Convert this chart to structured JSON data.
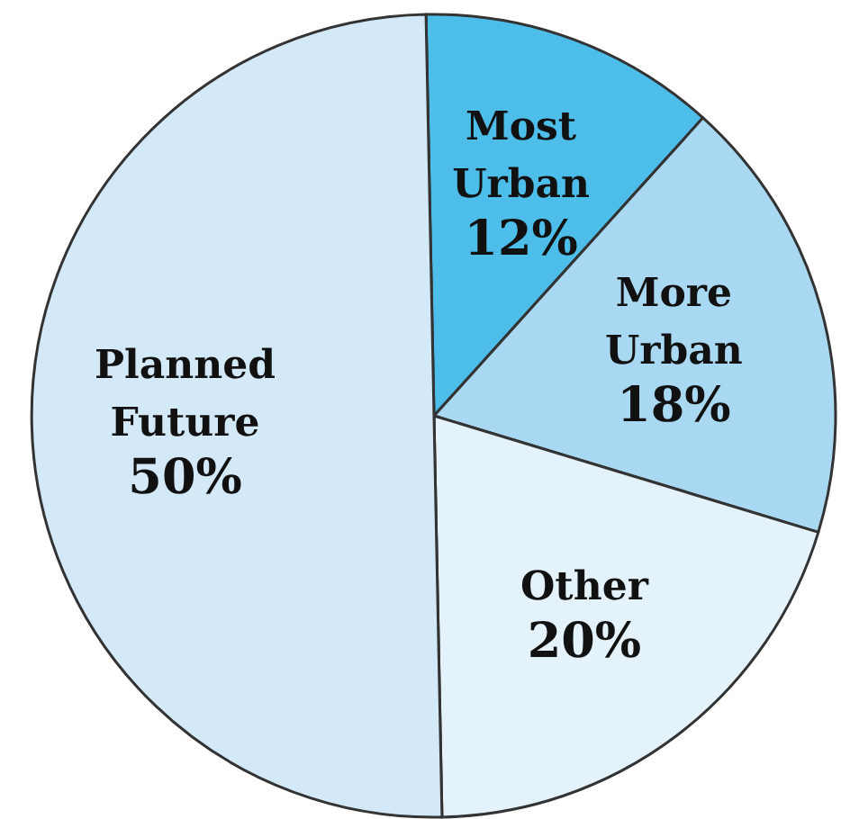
{
  "chart_data": {
    "type": "pie",
    "categories": [
      "Most Urban",
      "More Urban",
      "Other",
      "Planned Future"
    ],
    "values": [
      12,
      18,
      20,
      50
    ],
    "colors": [
      "#4dbde9",
      "#a9d9f2",
      "#e3f2fb",
      "#d3e9f8"
    ],
    "value_labels": [
      "12%",
      "18%",
      "20%",
      "50%"
    ]
  }
}
